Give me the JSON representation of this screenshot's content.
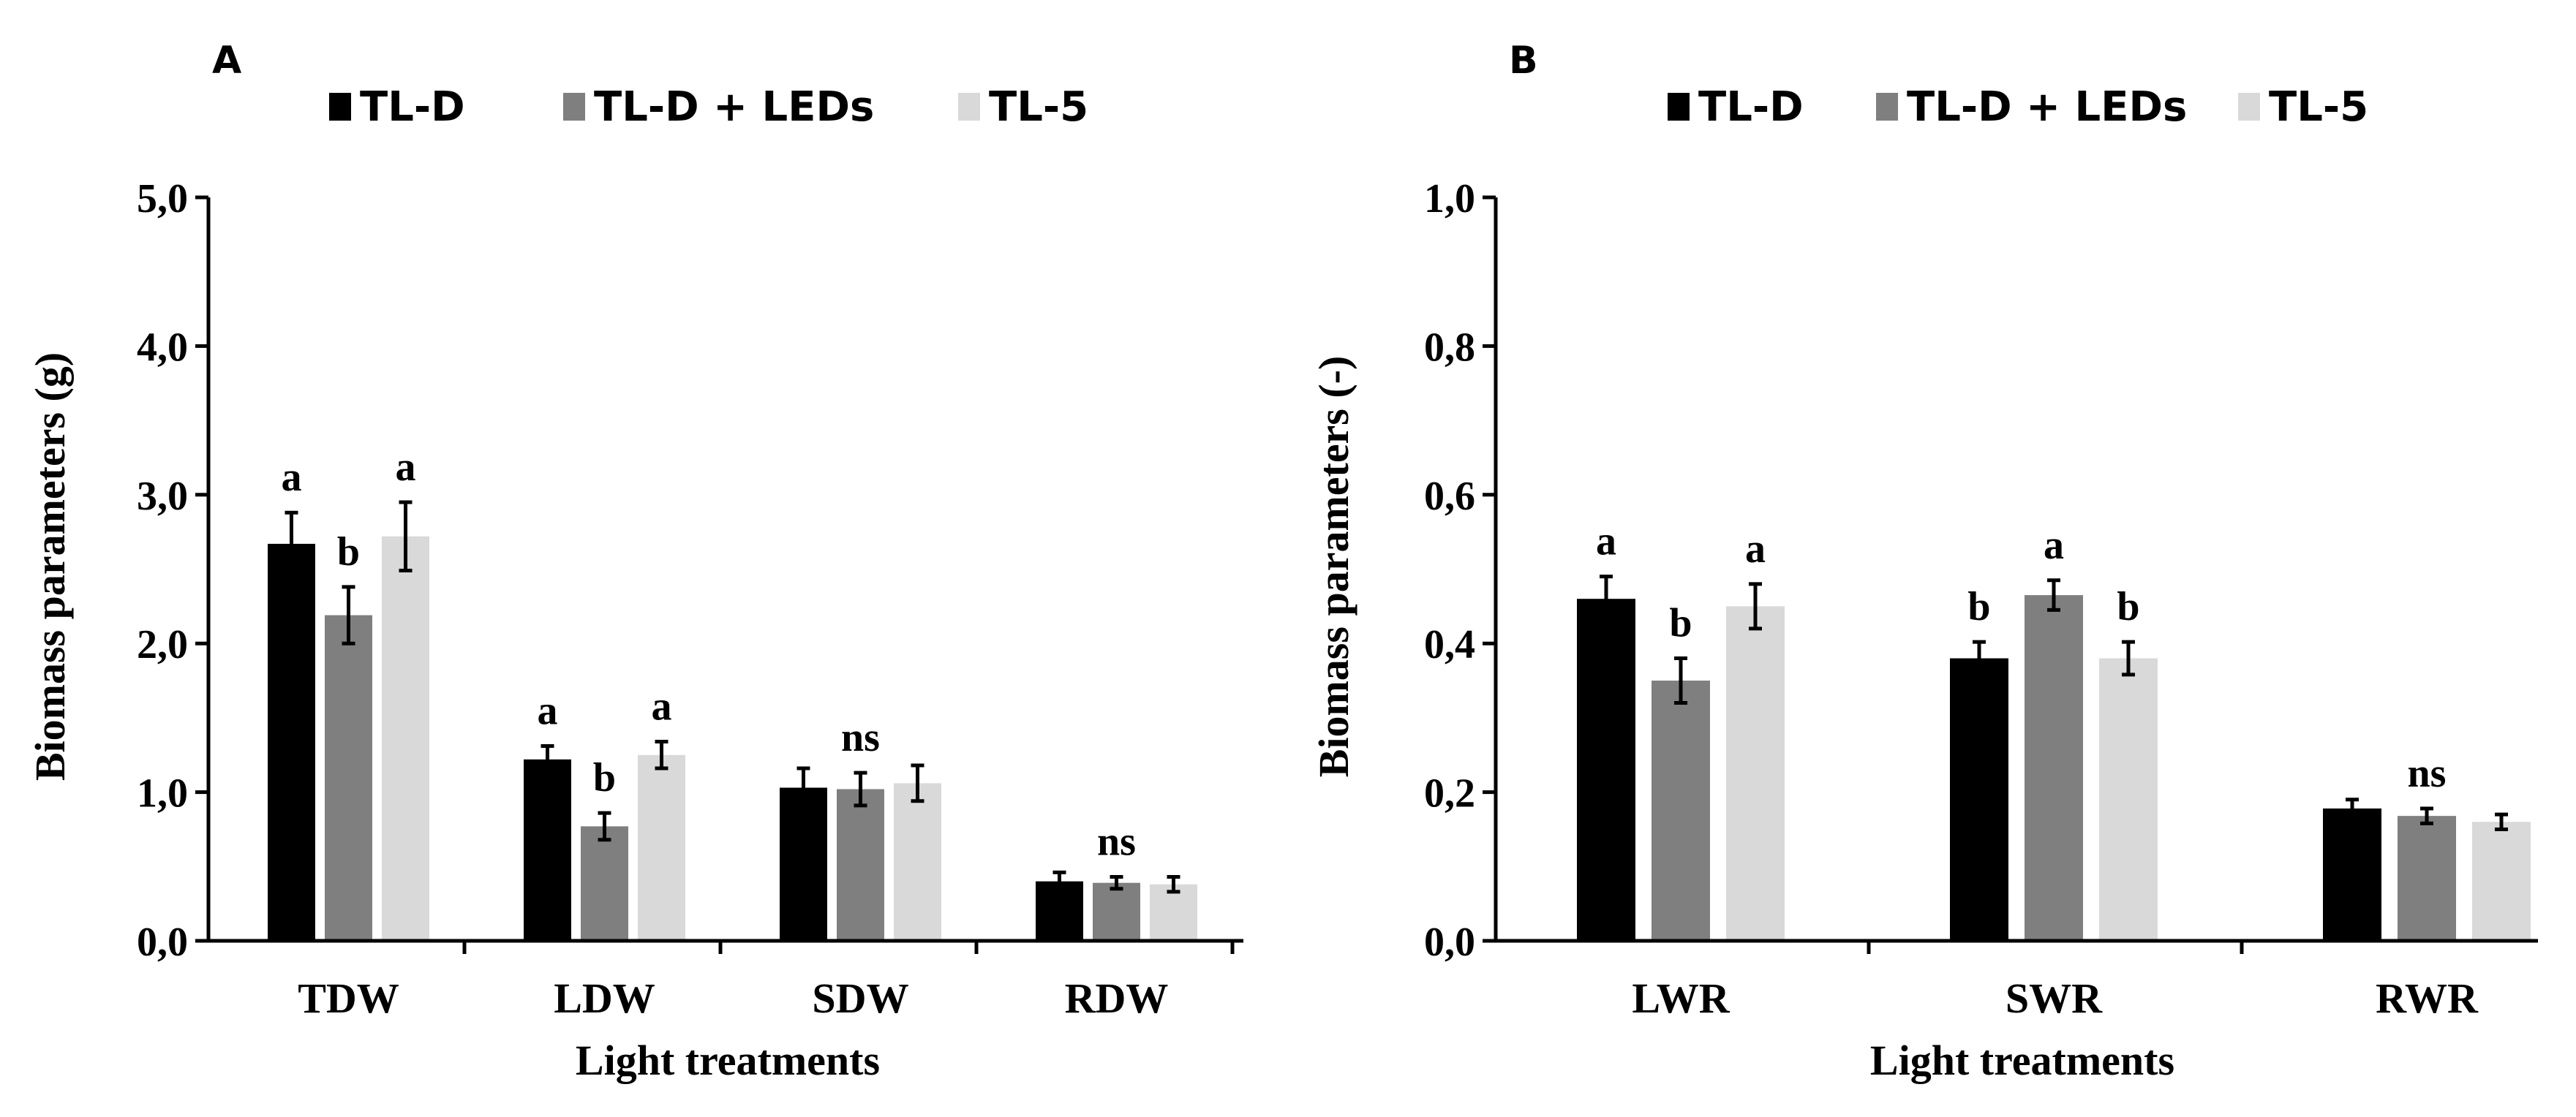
{
  "chart_data": [
    {
      "panel": "A",
      "type": "bar",
      "xlabel": "Light treatments",
      "ylabel": "Biomass parameters (g)",
      "ylim": [
        0,
        5
      ],
      "yticks": [
        "0,0",
        "1,0",
        "2,0",
        "3,0",
        "4,0",
        "5,0"
      ],
      "categories": [
        "TDW",
        "LDW",
        "SDW",
        "RDW"
      ],
      "series": [
        {
          "name": "TL-D",
          "color": "#000000",
          "values": [
            2.67,
            1.22,
            1.03,
            0.4
          ],
          "errors": [
            0.21,
            0.09,
            0.13,
            0.06
          ]
        },
        {
          "name": "TL-D + LEDs",
          "color": "#7f7f7f",
          "values": [
            2.19,
            0.77,
            1.02,
            0.39
          ],
          "errors": [
            0.19,
            0.09,
            0.11,
            0.04
          ]
        },
        {
          "name": "TL-5",
          "color": "#d9d9d9",
          "values": [
            2.72,
            1.25,
            1.06,
            0.38
          ],
          "errors": [
            0.23,
            0.09,
            0.12,
            0.05
          ]
        }
      ],
      "annotations": [
        {
          "category": 0,
          "series": 0,
          "text": "a"
        },
        {
          "category": 0,
          "series": 1,
          "text": "b"
        },
        {
          "category": 0,
          "series": 2,
          "text": "a"
        },
        {
          "category": 1,
          "series": 0,
          "text": "a"
        },
        {
          "category": 1,
          "series": 1,
          "text": "b"
        },
        {
          "category": 1,
          "series": 2,
          "text": "a"
        },
        {
          "category": 2,
          "series": 1,
          "text": "ns"
        },
        {
          "category": 3,
          "series": 1,
          "text": "ns"
        }
      ]
    },
    {
      "panel": "B",
      "type": "bar",
      "xlabel": "Light treatments",
      "ylabel": "Biomass parameters (-)",
      "ylim": [
        0,
        1
      ],
      "yticks": [
        "0,0",
        "0,2",
        "0,4",
        "0,6",
        "0,8",
        "1,0"
      ],
      "categories": [
        "LWR",
        "SWR",
        "RWR"
      ],
      "series": [
        {
          "name": "TL-D",
          "color": "#000000",
          "values": [
            0.46,
            0.38,
            0.178
          ],
          "errors": [
            0.03,
            0.022,
            0.012
          ]
        },
        {
          "name": "TL-D + LEDs",
          "color": "#7f7f7f",
          "values": [
            0.35,
            0.465,
            0.168
          ],
          "errors": [
            0.03,
            0.02,
            0.01
          ]
        },
        {
          "name": "TL-5",
          "color": "#d9d9d9",
          "values": [
            0.45,
            0.38,
            0.16
          ],
          "errors": [
            0.03,
            0.022,
            0.01
          ]
        }
      ],
      "annotations": [
        {
          "category": 0,
          "series": 0,
          "text": "a"
        },
        {
          "category": 0,
          "series": 1,
          "text": "b"
        },
        {
          "category": 0,
          "series": 2,
          "text": "a"
        },
        {
          "category": 1,
          "series": 0,
          "text": "b"
        },
        {
          "category": 1,
          "series": 1,
          "text": "a"
        },
        {
          "category": 1,
          "series": 2,
          "text": "b"
        },
        {
          "category": 2,
          "series": 1,
          "text": "ns"
        }
      ]
    }
  ]
}
